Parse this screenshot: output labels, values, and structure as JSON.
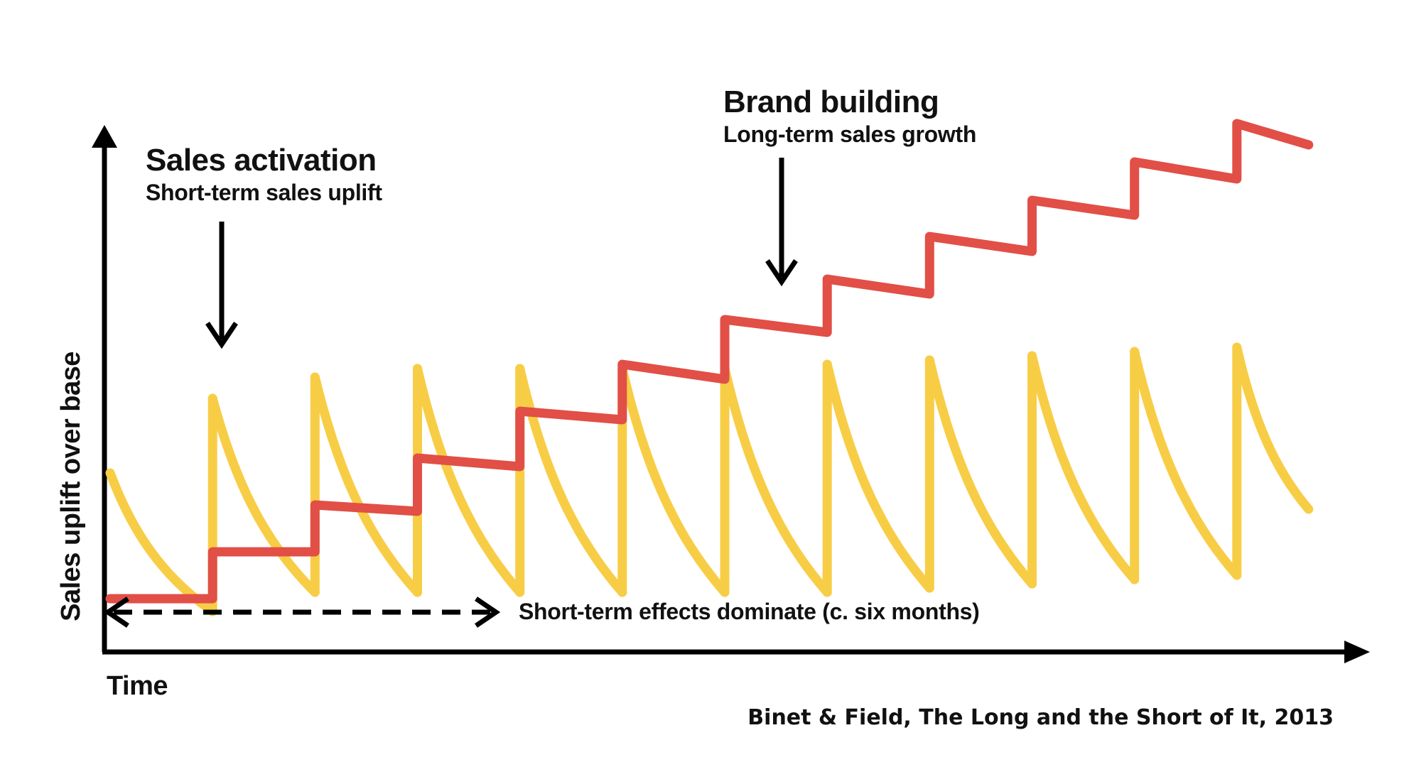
{
  "colors": {
    "background": "#ffffff",
    "axis": "#000000",
    "sales_activation": "#F8CD46",
    "brand_building": "#E14F46"
  },
  "icons": [
    "arrow-up-icon",
    "arrow-right-icon",
    "arrow-down-icon",
    "double-arrow-icon"
  ],
  "chart_data": {
    "type": "line",
    "xlabel": "Time",
    "ylabel": "Sales uplift over base",
    "grid": false,
    "legend": "none",
    "ylim": [
      0,
      20
    ],
    "xlim": [
      0,
      12
    ],
    "series": [
      {
        "name": "Sales activation",
        "style": "sawtooth",
        "pulses": [
          {
            "x0": 0.0,
            "x1": 1.0,
            "peak": 9.8,
            "trough": 3.3
          },
          {
            "x0": 1.0,
            "x1": 2.0,
            "peak": 13.3,
            "trough": 4.2
          },
          {
            "x0": 2.0,
            "x1": 3.0,
            "peak": 14.3,
            "trough": 4.2
          },
          {
            "x0": 3.0,
            "x1": 4.0,
            "peak": 14.7,
            "trough": 4.2
          },
          {
            "x0": 4.0,
            "x1": 5.0,
            "peak": 14.7,
            "trough": 4.2
          },
          {
            "x0": 5.0,
            "x1": 6.0,
            "peak": 14.7,
            "trough": 4.2
          },
          {
            "x0": 6.0,
            "x1": 7.0,
            "peak": 14.7,
            "trough": 4.2
          },
          {
            "x0": 7.0,
            "x1": 8.0,
            "peak": 14.9,
            "trough": 4.4
          },
          {
            "x0": 8.0,
            "x1": 9.0,
            "peak": 15.1,
            "trough": 4.6
          },
          {
            "x0": 9.0,
            "x1": 10.0,
            "peak": 15.3,
            "trough": 4.8
          },
          {
            "x0": 10.0,
            "x1": 11.0,
            "peak": 15.5,
            "trough": 5.0
          },
          {
            "x0": 11.0,
            "x1": 11.7,
            "peak": 15.7,
            "trough": 8.1
          }
        ]
      },
      {
        "name": "Brand building",
        "style": "staircase",
        "steps": [
          {
            "x0": 0.0,
            "x1": 1.0,
            "y0": 3.9,
            "y1": 3.9
          },
          {
            "x0": 1.0,
            "x1": 2.0,
            "y0": 6.1,
            "y1": 6.1
          },
          {
            "x0": 2.0,
            "x1": 3.0,
            "y0": 8.3,
            "y1": 8.0
          },
          {
            "x0": 3.0,
            "x1": 4.0,
            "y0": 10.5,
            "y1": 10.1
          },
          {
            "x0": 4.0,
            "x1": 5.0,
            "y0": 12.7,
            "y1": 12.3
          },
          {
            "x0": 5.0,
            "x1": 6.0,
            "y0": 14.9,
            "y1": 14.2
          },
          {
            "x0": 6.0,
            "x1": 7.0,
            "y0": 17.0,
            "y1": 16.4
          },
          {
            "x0": 7.0,
            "x1": 8.0,
            "y0": 18.9,
            "y1": 18.2
          },
          {
            "x0": 8.0,
            "x1": 9.0,
            "y0": 20.9,
            "y1": 20.2
          },
          {
            "x0": 9.0,
            "x1": 10.0,
            "y0": 22.6,
            "y1": 21.9
          },
          {
            "x0": 10.0,
            "x1": 11.0,
            "y0": 24.4,
            "y1": 23.6
          },
          {
            "x0": 11.0,
            "x1": 11.7,
            "y0": 26.2,
            "y1": 25.2
          }
        ]
      }
    ],
    "annotations": {
      "sales_activation_title": "Sales activation",
      "sales_activation_subtitle": "Short-term sales uplift",
      "brand_building_title": "Brand building",
      "brand_building_subtitle": "Long-term sales growth",
      "short_term_note": "Short-term effects dominate (c. six months)"
    },
    "source": "Binet & Field, The Long and the Short of It, 2013"
  }
}
